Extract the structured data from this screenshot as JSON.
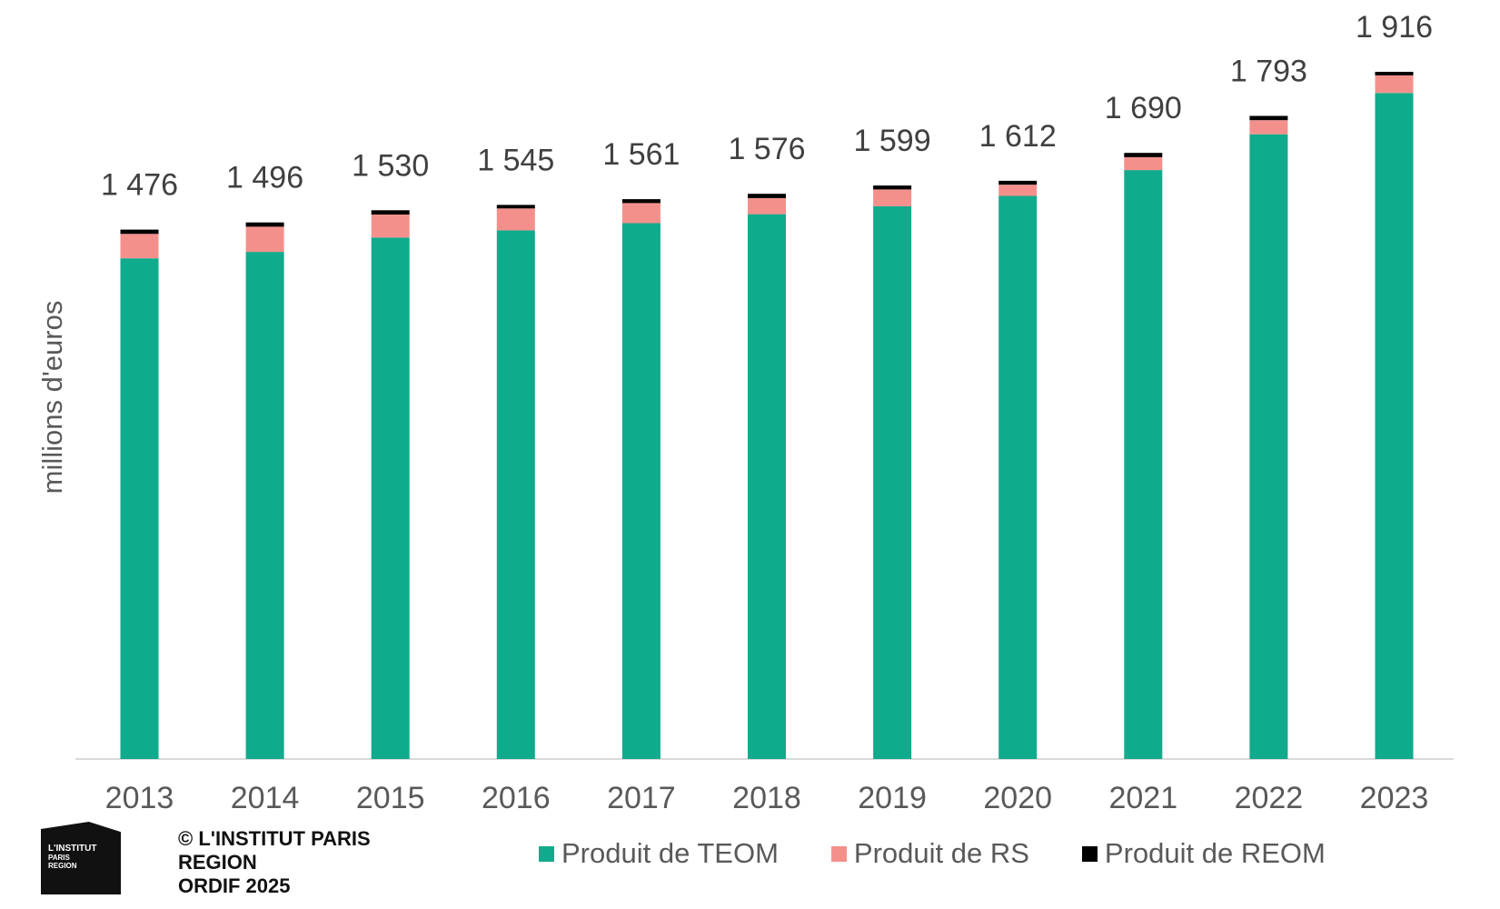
{
  "chart_data": {
    "type": "bar",
    "stacked": true,
    "categories": [
      "2013",
      "2014",
      "2015",
      "2016",
      "2017",
      "2018",
      "2019",
      "2020",
      "2021",
      "2022",
      "2023"
    ],
    "series": [
      {
        "name": "Produit de TEOM",
        "color": "#10AA8C",
        "values": [
          1396,
          1414,
          1454,
          1474,
          1494,
          1519,
          1541,
          1570,
          1642,
          1742,
          1857
        ]
      },
      {
        "name": "Produit de RS",
        "color": "#F4908C",
        "values": [
          68,
          70,
          64,
          61,
          56,
          45,
          47,
          31,
          36,
          39,
          49
        ]
      },
      {
        "name": "Produit de REOM",
        "color": "#000000",
        "values": [
          12,
          12,
          12,
          10,
          11,
          12,
          11,
          11,
          12,
          12,
          10
        ]
      }
    ],
    "totals": [
      "1 476",
      "1 496",
      "1 530",
      "1 545",
      "1 561",
      "1 576",
      "1 599",
      "1 612",
      "1 690",
      "1 793",
      "1 916"
    ],
    "ylabel": "millions d'euros",
    "xlabel": "",
    "ylim": [
      0,
      1916
    ],
    "grid": false,
    "legend_position": "bottom"
  },
  "legend": {
    "items": [
      {
        "label": "Produit de TEOM",
        "color": "#10AA8C"
      },
      {
        "label": "Produit de RS",
        "color": "#F4908C"
      },
      {
        "label": "Produit de REOM",
        "color": "#000000"
      }
    ]
  },
  "logo": {
    "line1": "L'INSTITUT",
    "line2": "PARIS",
    "line3": "REGION"
  },
  "credits": {
    "line1": "© L'INSTITUT PARIS",
    "line2": "REGION",
    "line3": "ORDIF 2025"
  }
}
